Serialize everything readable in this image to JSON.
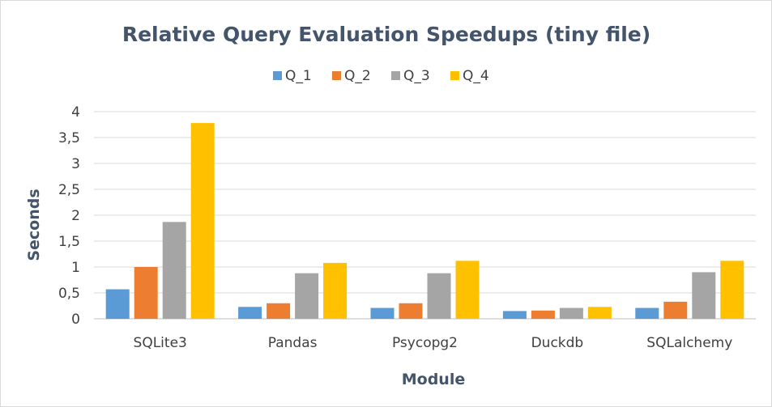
{
  "chart_data": {
    "type": "bar",
    "title": "Relative Query Evaluation Speedups (tiny file)",
    "xlabel": "Module",
    "ylabel": "Seconds",
    "categories": [
      "SQLite3",
      "Pandas",
      "Psycopg2",
      "Duckdb",
      "SQLalchemy"
    ],
    "series": [
      {
        "name": "Q_1",
        "color": "#5b9bd5",
        "values": [
          0.57,
          0.23,
          0.21,
          0.15,
          0.21
        ]
      },
      {
        "name": "Q_2",
        "color": "#ed7d31",
        "values": [
          1.0,
          0.3,
          0.3,
          0.16,
          0.33
        ]
      },
      {
        "name": "Q_3",
        "color": "#a5a5a5",
        "values": [
          1.87,
          0.88,
          0.88,
          0.21,
          0.9
        ]
      },
      {
        "name": "Q_4",
        "color": "#ffc000",
        "values": [
          3.78,
          1.08,
          1.12,
          0.23,
          1.12
        ]
      }
    ],
    "yticks": [
      "0",
      "0,5",
      "1",
      "1,5",
      "2",
      "2,5",
      "3",
      "3,5",
      "4"
    ],
    "ylim": [
      0,
      4
    ],
    "grid": true,
    "legend_position": "top"
  }
}
